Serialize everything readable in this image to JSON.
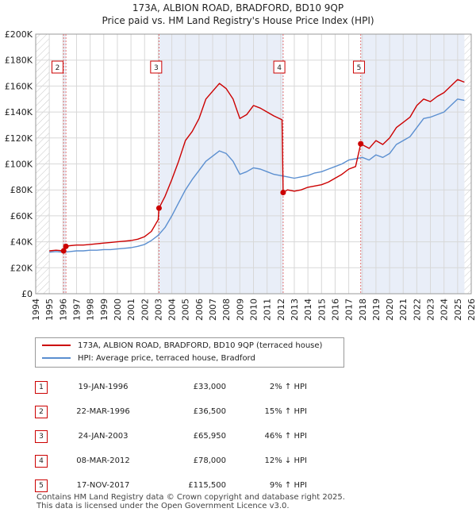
{
  "chart_data": {
    "type": "line",
    "title": "173A, ALBION ROAD, BRADFORD, BD10 9QP",
    "subtitle": "Price paid vs. HM Land Registry's House Price Index (HPI)",
    "xlabel": "",
    "ylabel": "",
    "xlim": [
      1994,
      2026
    ],
    "ylim": [
      0,
      200000
    ],
    "x_ticks": [
      1994,
      1995,
      1996,
      1997,
      1998,
      1999,
      2000,
      2001,
      2002,
      2003,
      2004,
      2005,
      2006,
      2007,
      2008,
      2009,
      2010,
      2011,
      2012,
      2013,
      2014,
      2015,
      2016,
      2017,
      2018,
      2019,
      2020,
      2021,
      2022,
      2023,
      2024,
      2025,
      2026
    ],
    "y_ticks": [
      {
        "value": 0,
        "label": "£0"
      },
      {
        "value": 20000,
        "label": "£20K"
      },
      {
        "value": 40000,
        "label": "£40K"
      },
      {
        "value": 60000,
        "label": "£60K"
      },
      {
        "value": 80000,
        "label": "£80K"
      },
      {
        "value": 100000,
        "label": "£100K"
      },
      {
        "value": 120000,
        "label": "£120K"
      },
      {
        "value": 140000,
        "label": "£140K"
      },
      {
        "value": 160000,
        "label": "£160K"
      },
      {
        "value": 180000,
        "label": "£180K"
      },
      {
        "value": 200000,
        "label": "£200K"
      }
    ],
    "data_start": 1995.0,
    "data_end": 2025.5,
    "series": [
      {
        "name": "173A, ALBION ROAD, BRADFORD, BD10 9QP (terraced house)",
        "color": "#cc0000",
        "points": [
          [
            1995.0,
            33000
          ],
          [
            1995.5,
            33500
          ],
          [
            1996.05,
            33000
          ],
          [
            1996.2,
            36500
          ],
          [
            1996.5,
            37000
          ],
          [
            1997.0,
            37500
          ],
          [
            1997.5,
            37500
          ],
          [
            1998.0,
            38000
          ],
          [
            1998.5,
            38500
          ],
          [
            1999.0,
            39000
          ],
          [
            1999.5,
            39500
          ],
          [
            2000.0,
            40000
          ],
          [
            2000.5,
            40500
          ],
          [
            2001.0,
            41000
          ],
          [
            2001.5,
            42000
          ],
          [
            2002.0,
            44000
          ],
          [
            2002.5,
            48000
          ],
          [
            2003.0,
            57000
          ],
          [
            2003.06,
            65950
          ],
          [
            2003.5,
            75000
          ],
          [
            2004.0,
            88000
          ],
          [
            2004.5,
            102000
          ],
          [
            2005.0,
            118000
          ],
          [
            2005.5,
            125000
          ],
          [
            2006.0,
            135000
          ],
          [
            2006.5,
            150000
          ],
          [
            2007.0,
            156000
          ],
          [
            2007.5,
            162000
          ],
          [
            2008.0,
            158000
          ],
          [
            2008.5,
            150000
          ],
          [
            2009.0,
            135000
          ],
          [
            2009.5,
            138000
          ],
          [
            2010.0,
            145000
          ],
          [
            2010.5,
            143000
          ],
          [
            2011.0,
            140000
          ],
          [
            2011.5,
            137000
          ],
          [
            2012.1,
            134000
          ],
          [
            2012.18,
            78000
          ],
          [
            2012.5,
            80000
          ],
          [
            2013.0,
            79000
          ],
          [
            2013.5,
            80000
          ],
          [
            2014.0,
            82000
          ],
          [
            2014.5,
            83000
          ],
          [
            2015.0,
            84000
          ],
          [
            2015.5,
            86000
          ],
          [
            2016.0,
            89000
          ],
          [
            2016.5,
            92000
          ],
          [
            2017.0,
            96000
          ],
          [
            2017.5,
            98000
          ],
          [
            2017.88,
            115500
          ],
          [
            2018.5,
            112000
          ],
          [
            2019.0,
            118000
          ],
          [
            2019.5,
            115000
          ],
          [
            2020.0,
            120000
          ],
          [
            2020.5,
            128000
          ],
          [
            2021.0,
            132000
          ],
          [
            2021.5,
            136000
          ],
          [
            2022.0,
            145000
          ],
          [
            2022.5,
            150000
          ],
          [
            2023.0,
            148000
          ],
          [
            2023.5,
            152000
          ],
          [
            2024.0,
            155000
          ],
          [
            2024.5,
            160000
          ],
          [
            2025.0,
            165000
          ],
          [
            2025.5,
            163000
          ]
        ]
      },
      {
        "name": "HPI: Average price, terraced house, Bradford",
        "color": "#5b8fd0",
        "points": [
          [
            1995.0,
            32000
          ],
          [
            1995.5,
            32500
          ],
          [
            1996.0,
            32000
          ],
          [
            1996.5,
            32500
          ],
          [
            1997.0,
            33000
          ],
          [
            1997.5,
            33000
          ],
          [
            1998.0,
            33500
          ],
          [
            1998.5,
            33500
          ],
          [
            1999.0,
            34000
          ],
          [
            1999.5,
            34000
          ],
          [
            2000.0,
            34500
          ],
          [
            2000.5,
            35000
          ],
          [
            2001.0,
            35500
          ],
          [
            2001.5,
            36500
          ],
          [
            2002.0,
            38000
          ],
          [
            2002.5,
            41000
          ],
          [
            2003.0,
            45000
          ],
          [
            2003.5,
            51000
          ],
          [
            2004.0,
            60000
          ],
          [
            2004.5,
            70000
          ],
          [
            2005.0,
            80000
          ],
          [
            2005.5,
            88000
          ],
          [
            2006.0,
            95000
          ],
          [
            2006.5,
            102000
          ],
          [
            2007.0,
            106000
          ],
          [
            2007.5,
            110000
          ],
          [
            2008.0,
            108000
          ],
          [
            2008.5,
            102000
          ],
          [
            2009.0,
            92000
          ],
          [
            2009.5,
            94000
          ],
          [
            2010.0,
            97000
          ],
          [
            2010.5,
            96000
          ],
          [
            2011.0,
            94000
          ],
          [
            2011.5,
            92000
          ],
          [
            2012.0,
            91000
          ],
          [
            2012.5,
            90000
          ],
          [
            2013.0,
            89000
          ],
          [
            2013.5,
            90000
          ],
          [
            2014.0,
            91000
          ],
          [
            2014.5,
            93000
          ],
          [
            2015.0,
            94000
          ],
          [
            2015.5,
            96000
          ],
          [
            2016.0,
            98000
          ],
          [
            2016.5,
            100000
          ],
          [
            2017.0,
            103000
          ],
          [
            2017.5,
            104000
          ],
          [
            2018.0,
            105000
          ],
          [
            2018.5,
            103000
          ],
          [
            2019.0,
            107000
          ],
          [
            2019.5,
            105000
          ],
          [
            2020.0,
            108000
          ],
          [
            2020.5,
            115000
          ],
          [
            2021.0,
            118000
          ],
          [
            2021.5,
            121000
          ],
          [
            2022.0,
            128000
          ],
          [
            2022.5,
            135000
          ],
          [
            2023.0,
            136000
          ],
          [
            2023.5,
            138000
          ],
          [
            2024.0,
            140000
          ],
          [
            2024.5,
            145000
          ],
          [
            2025.0,
            150000
          ],
          [
            2025.5,
            149000
          ]
        ]
      }
    ],
    "markers": [
      {
        "id": "1",
        "x": 1996.05,
        "y": 33000,
        "label_x": 1996.05,
        "box": false
      },
      {
        "id": "2",
        "x": 1996.22,
        "y": 36500,
        "label_x": 1995.6,
        "box": true
      },
      {
        "id": "3",
        "x": 2003.06,
        "y": 65950,
        "label_x": 2002.85,
        "box": true
      },
      {
        "id": "4",
        "x": 2012.18,
        "y": 78000,
        "label_x": 2011.9,
        "box": true
      },
      {
        "id": "5",
        "x": 2017.88,
        "y": 115500,
        "label_x": 2017.75,
        "box": true
      }
    ],
    "legend": [
      {
        "label": "173A, ALBION ROAD, BRADFORD, BD10 9QP (terraced house)",
        "color": "#cc0000"
      },
      {
        "label": "HPI: Average price, terraced house, Bradford",
        "color": "#5b8fd0"
      }
    ],
    "colors": {
      "price_line": "#cc0000",
      "hpi_line": "#5b8fd0",
      "shade": "#e9eef8",
      "grid": "#d8d8d8",
      "hatch": "#c8c8c8",
      "marker_line": "#e07070"
    }
  },
  "transactions": [
    {
      "num": "1",
      "date": "19-JAN-1996",
      "price": "£33,000",
      "hpi": "2% ↑ HPI"
    },
    {
      "num": "2",
      "date": "22-MAR-1996",
      "price": "£36,500",
      "hpi": "15% ↑ HPI"
    },
    {
      "num": "3",
      "date": "24-JAN-2003",
      "price": "£65,950",
      "hpi": "46% ↑ HPI"
    },
    {
      "num": "4",
      "date": "08-MAR-2012",
      "price": "£78,000",
      "hpi": "12% ↓ HPI"
    },
    {
      "num": "5",
      "date": "17-NOV-2017",
      "price": "£115,500",
      "hpi": "9% ↑ HPI"
    }
  ],
  "footer": {
    "line1": "Contains HM Land Registry data © Crown copyright and database right 2025.",
    "line2": "This data is licensed under the Open Government Licence v3.0."
  }
}
